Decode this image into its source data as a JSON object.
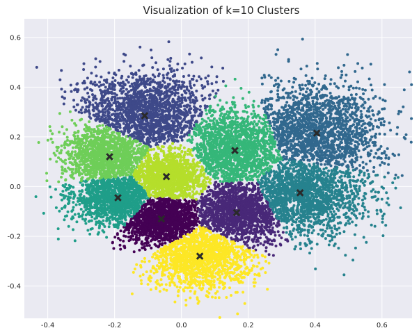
{
  "chart_data": {
    "type": "scatter",
    "title": "Visualization of k=10 Clusters",
    "xlabel": "",
    "ylabel": "",
    "xlim": [
      -0.47,
      0.69
    ],
    "ylim": [
      -0.53,
      0.675
    ],
    "xticks": [
      -0.4,
      -0.2,
      0.0,
      0.2,
      0.4,
      0.6
    ],
    "xtick_labels": [
      "-0.4",
      "-0.2",
      "0.0",
      "0.2",
      "0.4",
      "0.6"
    ],
    "yticks": [
      -0.4,
      -0.2,
      0.0,
      0.2,
      0.4,
      0.6
    ],
    "ytick_labels": [
      "-0.4",
      "-0.2",
      "0.0",
      "0.2",
      "0.4",
      "0.6"
    ],
    "grid": true,
    "background": "#eaeaf2",
    "grid_color": "#ffffff",
    "colormap": "viridis",
    "clusters": [
      {
        "color": "#440154",
        "centroid": [
          -0.06,
          -0.13
        ],
        "spread": [
          0.07,
          0.05
        ],
        "points": 1400
      },
      {
        "color": "#482878",
        "centroid": [
          0.165,
          -0.105
        ],
        "spread": [
          0.085,
          0.065
        ],
        "points": 1500
      },
      {
        "color": "#3e4989",
        "centroid": [
          -0.11,
          0.285
        ],
        "spread": [
          0.1,
          0.09
        ],
        "points": 1700
      },
      {
        "color": "#31688e",
        "centroid": [
          0.405,
          0.215
        ],
        "spread": [
          0.1,
          0.1
        ],
        "points": 1700
      },
      {
        "color": "#26828e",
        "centroid": [
          0.355,
          -0.025
        ],
        "spread": [
          0.1,
          0.09
        ],
        "points": 1700
      },
      {
        "color": "#1f9e89",
        "centroid": [
          -0.19,
          -0.045
        ],
        "spread": [
          0.07,
          0.06
        ],
        "points": 1300
      },
      {
        "color": "#35b779",
        "centroid": [
          0.16,
          0.145
        ],
        "spread": [
          0.085,
          0.085
        ],
        "points": 1600
      },
      {
        "color": "#6ece58",
        "centroid": [
          -0.215,
          0.12
        ],
        "spread": [
          0.07,
          0.065
        ],
        "points": 1300
      },
      {
        "color": "#b5de2b",
        "centroid": [
          -0.045,
          0.04
        ],
        "spread": [
          0.06,
          0.055
        ],
        "points": 1300
      },
      {
        "color": "#fde725",
        "centroid": [
          0.055,
          -0.28
        ],
        "spread": [
          0.08,
          0.07
        ],
        "points": 1500
      }
    ],
    "centroid_marker": "X",
    "centroid_color": "#2a2a2a"
  }
}
